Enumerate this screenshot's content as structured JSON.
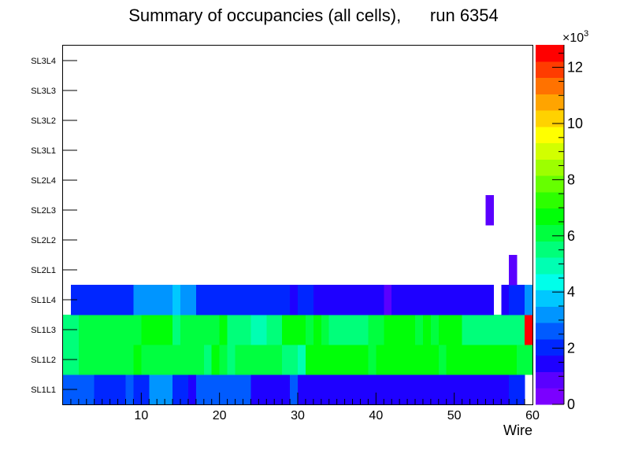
{
  "chart_data": {
    "type": "heatmap",
    "title": "Summary of occupancies (all cells),      run 6354",
    "xlabel": "Wire",
    "ylabel": "",
    "xlim": [
      0,
      60
    ],
    "x_ticks": [
      "10",
      "20",
      "30",
      "40",
      "50",
      "60"
    ],
    "y_categories": [
      "SL1L1",
      "SL1L2",
      "SL1L3",
      "SL1L4",
      "SL2L1",
      "SL2L2",
      "SL2L3",
      "SL2L4",
      "SL3L1",
      "SL3L2",
      "SL3L3",
      "SL3L4"
    ],
    "z_range": [
      0,
      12800
    ],
    "z_ticks": [
      "0",
      "2",
      "4",
      "6",
      "8",
      "10",
      "12"
    ],
    "z_exponent_base": "×10",
    "z_exponent": "3",
    "rows": {
      "SL1L1": [
        2800,
        2800,
        2800,
        2800,
        2000,
        2000,
        2000,
        2000,
        2800,
        2000,
        2000,
        3200,
        3200,
        3200,
        2000,
        2000,
        1600,
        2400,
        2400,
        2400,
        2400,
        2400,
        2400,
        2400,
        1600,
        1600,
        1600,
        1600,
        1600,
        2400,
        1600,
        1600,
        1600,
        1600,
        1600,
        1600,
        1600,
        1600,
        1600,
        1600,
        1600,
        1600,
        1600,
        1600,
        1600,
        1600,
        1600,
        1600,
        1600,
        1600,
        1600,
        1600,
        1600,
        1600,
        1600,
        1600,
        1600,
        2000,
        2000,
        null
      ],
      "SL1L2": [
        5500,
        5500,
        6000,
        6000,
        6000,
        6000,
        6000,
        6000,
        6000,
        6600,
        6000,
        6000,
        6000,
        6000,
        6000,
        6000,
        6000,
        6000,
        5500,
        6600,
        6000,
        5500,
        6000,
        6000,
        6000,
        6000,
        6000,
        6000,
        5500,
        5500,
        5000,
        6600,
        6600,
        6600,
        6600,
        6600,
        6600,
        6600,
        6600,
        6000,
        6600,
        6600,
        6600,
        6600,
        6600,
        6600,
        6600,
        6600,
        6000,
        6600,
        6600,
        6600,
        6600,
        6600,
        6600,
        6600,
        6600,
        6600,
        6000,
        6000
      ],
      "SL1L3": [
        5500,
        5500,
        6000,
        6000,
        6000,
        6000,
        6000,
        6000,
        6000,
        6000,
        6600,
        6600,
        6600,
        6600,
        5800,
        6000,
        6000,
        6000,
        6000,
        6000,
        6600,
        5800,
        5800,
        5800,
        5000,
        5000,
        5800,
        5800,
        6600,
        6600,
        6600,
        6300,
        6600,
        6300,
        5800,
        5800,
        5800,
        5800,
        5800,
        6300,
        6000,
        6600,
        6600,
        6600,
        6600,
        6300,
        6600,
        6300,
        6600,
        6600,
        6600,
        5800,
        5800,
        5800,
        5800,
        5800,
        5800,
        5800,
        5800,
        12500
      ],
      "SL1L4": [
        null,
        2000,
        2000,
        2000,
        2000,
        2000,
        2000,
        2000,
        2000,
        3000,
        3000,
        3000,
        3000,
        3000,
        3600,
        3000,
        3000,
        2000,
        2000,
        2000,
        2000,
        2000,
        2000,
        2000,
        2000,
        2000,
        2000,
        2000,
        2000,
        1400,
        2000,
        2000,
        1400,
        1400,
        1400,
        1400,
        1400,
        1400,
        1400,
        1400,
        1400,
        900,
        1400,
        1400,
        1400,
        1400,
        1400,
        1400,
        1400,
        1400,
        1400,
        1400,
        1400,
        1400,
        1400,
        null,
        1400,
        2000,
        2000,
        3000
      ],
      "SL2L1": [
        null,
        null,
        null,
        null,
        null,
        null,
        null,
        null,
        null,
        null,
        null,
        null,
        null,
        null,
        null,
        null,
        null,
        null,
        null,
        null,
        null,
        null,
        null,
        null,
        null,
        null,
        null,
        null,
        null,
        null,
        null,
        null,
        null,
        null,
        null,
        null,
        null,
        null,
        null,
        null,
        null,
        null,
        null,
        null,
        null,
        null,
        null,
        null,
        null,
        null,
        null,
        null,
        null,
        null,
        null,
        null,
        null,
        700,
        null,
        null
      ],
      "SL2L2": [],
      "SL2L3": [
        null,
        null,
        null,
        null,
        null,
        null,
        null,
        null,
        null,
        null,
        null,
        null,
        null,
        null,
        null,
        null,
        null,
        null,
        null,
        null,
        null,
        null,
        null,
        null,
        null,
        null,
        null,
        null,
        null,
        null,
        null,
        null,
        null,
        null,
        null,
        null,
        null,
        null,
        null,
        null,
        null,
        null,
        null,
        null,
        null,
        null,
        null,
        null,
        null,
        null,
        null,
        null,
        null,
        null,
        700,
        null,
        null,
        null,
        null,
        null
      ],
      "SL2L4": [],
      "SL3L1": [],
      "SL3L2": [],
      "SL3L3": [],
      "SL3L4": []
    },
    "palette": [
      "#7b00ff",
      "#5a00ff",
      "#1e00ff",
      "#0026ff",
      "#005bff",
      "#0095ff",
      "#00c8ff",
      "#00ffea",
      "#00ffb3",
      "#00ff7a",
      "#00ff3f",
      "#00ff08",
      "#2dff00",
      "#66ff00",
      "#9dff00",
      "#d2ff00",
      "#ffff00",
      "#ffd200",
      "#ffa400",
      "#ff7200",
      "#ff3c00",
      "#ff0000"
    ]
  }
}
